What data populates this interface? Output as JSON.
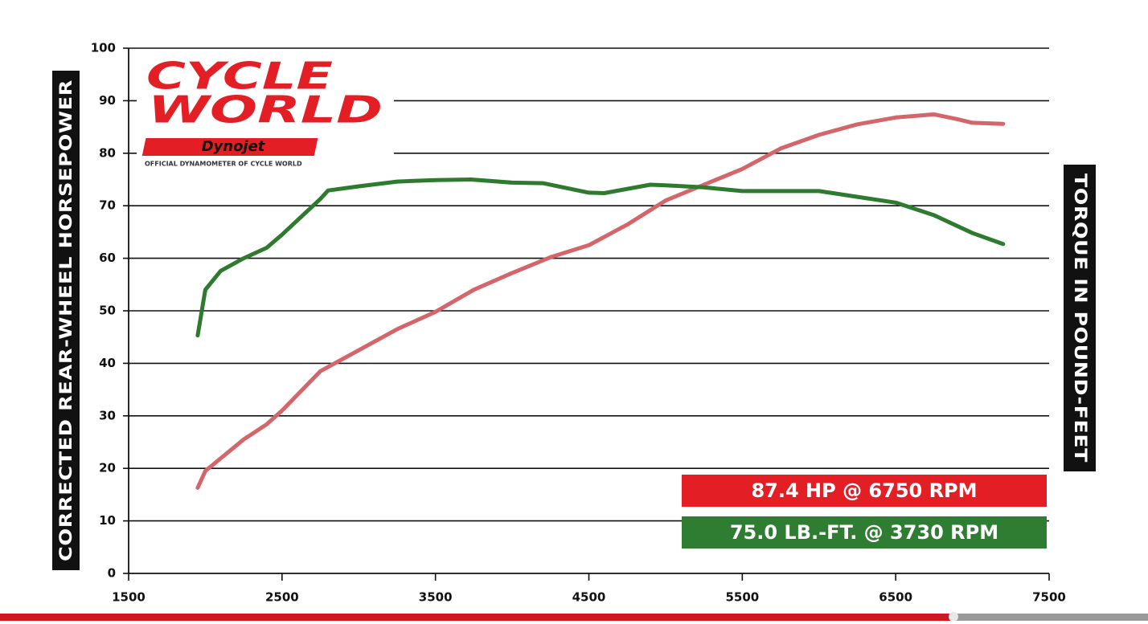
{
  "logo": {
    "brand": "CYCLE",
    "brand2": "WORLD",
    "sponsor": "Dynojet",
    "tagline": "OFFICIAL DYNAMOMETER OF CYCLE WORLD"
  },
  "chart_data": {
    "type": "line",
    "ylabel": "CORRECTED REAR-WHEEL HORSEPOWER",
    "y2label": "TORQUE IN POUND-FEET",
    "xlim": [
      1500,
      7500
    ],
    "xticks": [
      1500,
      2500,
      3500,
      4500,
      5500,
      6500,
      7500
    ],
    "ylim": [
      0,
      100
    ],
    "yticks": [
      0,
      10,
      20,
      30,
      40,
      50,
      60,
      70,
      80,
      90,
      100
    ],
    "grid": true,
    "series": [
      {
        "color": "#d4666b",
        "x": [
          1950,
          2000,
          2250,
          2400,
          2500,
          2750,
          3000,
          3250,
          3500,
          3750,
          4000,
          4250,
          4500,
          4750,
          5000,
          5250,
          5500,
          5750,
          6000,
          6250,
          6500,
          6750,
          6900,
          7000,
          7200
        ],
        "values": [
          16.3,
          19.5,
          25.5,
          28.4,
          31,
          38.5,
          42.5,
          46.5,
          49.8,
          54,
          57.2,
          60.2,
          62.5,
          66.4,
          71,
          74,
          77,
          80.9,
          83.5,
          85.5,
          86.8,
          87.4,
          86.5,
          85.8,
          85.6
        ]
      },
      {
        "color": "#2e7a2e",
        "x": [
          1950,
          2000,
          2100,
          2250,
          2400,
          2500,
          2750,
          2800,
          3000,
          3250,
          3500,
          3730,
          4000,
          4200,
          4500,
          4600,
          4900,
          5000,
          5250,
          5500,
          5750,
          6000,
          6250,
          6500,
          6750,
          7000,
          7200
        ],
        "values": [
          45.3,
          54,
          57.6,
          60,
          62,
          64.5,
          71.3,
          72.9,
          73.7,
          74.6,
          74.9,
          75.0,
          74.4,
          74.3,
          72.5,
          72.4,
          74,
          73.9,
          73.5,
          72.8,
          72.8,
          72.8,
          71.7,
          70.6,
          68.2,
          64.8,
          62.7
        ]
      }
    ],
    "annotations": [
      {
        "text": "87.4 HP @ 6750 RPM",
        "color": "#e31e24"
      },
      {
        "text": "75.0 LB.-FT. @ 3730 RPM",
        "color": "#2e7d32"
      }
    ]
  }
}
